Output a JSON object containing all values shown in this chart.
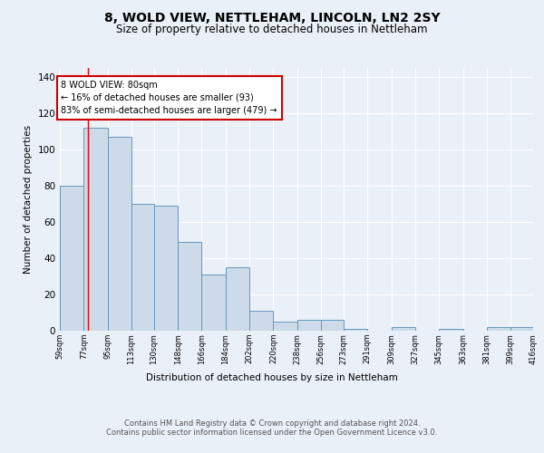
{
  "title": "8, WOLD VIEW, NETTLEHAM, LINCOLN, LN2 2SY",
  "subtitle": "Size of property relative to detached houses in Nettleham",
  "xlabel": "Distribution of detached houses by size in Nettleham",
  "ylabel": "Number of detached properties",
  "bin_edges": [
    59,
    77,
    95,
    113,
    130,
    148,
    166,
    184,
    202,
    220,
    238,
    256,
    273,
    291,
    309,
    327,
    345,
    363,
    381,
    399,
    416
  ],
  "bar_heights": [
    80,
    112,
    107,
    70,
    69,
    49,
    31,
    35,
    11,
    5,
    6,
    6,
    1,
    0,
    2,
    0,
    1,
    0,
    2,
    2
  ],
  "bar_color": "#ccdaea",
  "bar_edge_color": "#6699bb",
  "background_color": "#eaf0f8",
  "grid_color": "#ffffff",
  "red_line_x": 80,
  "annotation_text": "8 WOLD VIEW: 80sqm\n← 16% of detached houses are smaller (93)\n83% of semi-detached houses are larger (479) →",
  "annotation_box_color": "#ffffff",
  "annotation_box_edge": "#cc0000",
  "footer_text": "Contains HM Land Registry data © Crown copyright and database right 2024.\nContains public sector information licensed under the Open Government Licence v3.0.",
  "ylim": [
    0,
    145
  ],
  "yticks": [
    0,
    20,
    40,
    60,
    80,
    100,
    120,
    140
  ],
  "tick_labels": [
    "59sqm",
    "77sqm",
    "95sqm",
    "113sqm",
    "130sqm",
    "148sqm",
    "166sqm",
    "184sqm",
    "202sqm",
    "220sqm",
    "238sqm",
    "256sqm",
    "273sqm",
    "291sqm",
    "309sqm",
    "327sqm",
    "345sqm",
    "363sqm",
    "381sqm",
    "399sqm",
    "416sqm"
  ]
}
